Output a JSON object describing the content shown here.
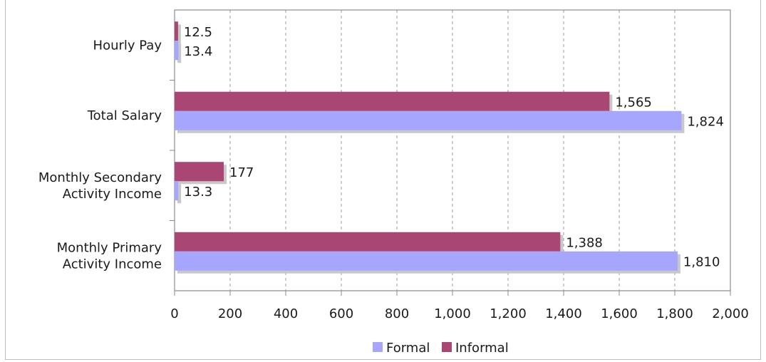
{
  "chart_data": {
    "type": "bar",
    "orientation": "horizontal",
    "categories": [
      "Hourly Pay",
      "Total Salary",
      "Monthly Secondary Activity Income",
      "Monthly Primary Activity Income"
    ],
    "category_lines": [
      [
        "Hourly Pay"
      ],
      [
        "Total Salary"
      ],
      [
        "Monthly Secondary",
        "Activity Income"
      ],
      [
        "Monthly Primary",
        "Activity Income"
      ]
    ],
    "series": [
      {
        "name": "Informal",
        "color": "#a94674",
        "values": [
          12.5,
          1565,
          177,
          1388
        ],
        "labels": [
          "12.5",
          "1,565",
          "177",
          "1,388"
        ]
      },
      {
        "name": "Formal",
        "color": "#a6a6ff",
        "values": [
          13.4,
          1824,
          13.3,
          1810
        ],
        "labels": [
          "13.4",
          "1,824",
          "13.3",
          "1,810"
        ]
      }
    ],
    "xlim": [
      0,
      2000
    ],
    "xticks": [
      0,
      200,
      400,
      600,
      800,
      1000,
      1200,
      1400,
      1600,
      1800,
      2000
    ],
    "xtick_labels": [
      "0",
      "200",
      "400",
      "600",
      "800",
      "1,000",
      "1,200",
      "1,400",
      "1,600",
      "1,800",
      "2,000"
    ],
    "grid": "vertical-dashed",
    "legend": {
      "position": "bottom",
      "entries": [
        {
          "name": "Formal",
          "color": "#a6a6ff"
        },
        {
          "name": "Informal",
          "color": "#a94674"
        }
      ]
    },
    "shadow_color": "#c8c8c8"
  }
}
